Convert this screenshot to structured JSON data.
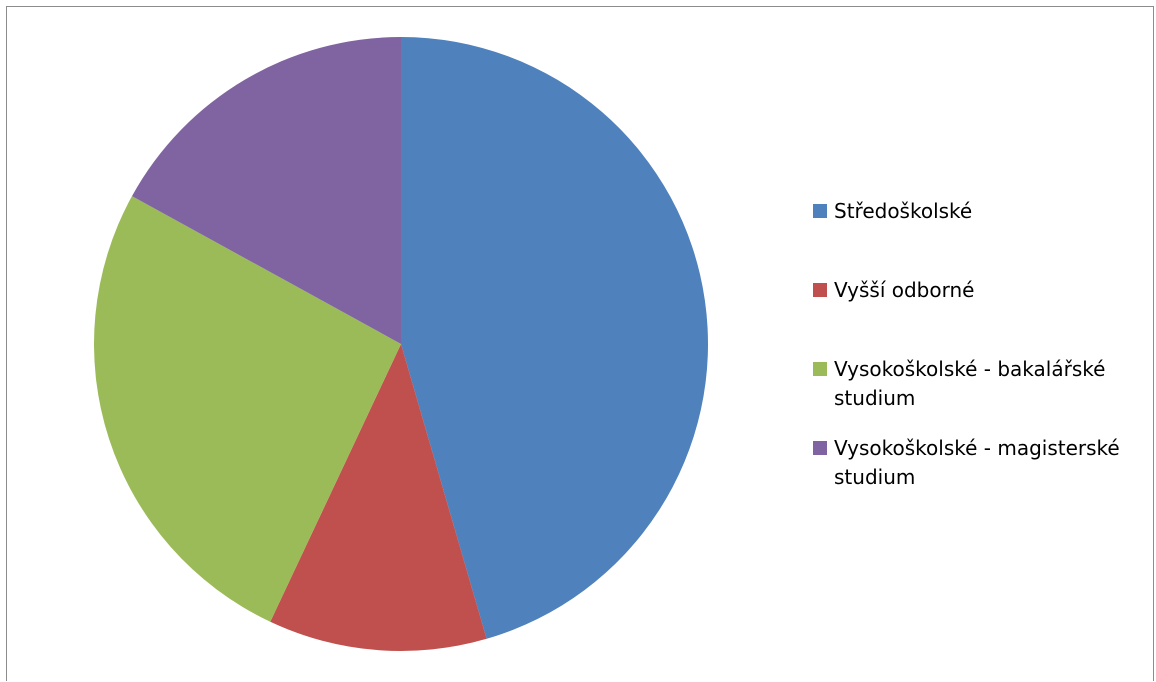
{
  "chart_data": {
    "type": "pie",
    "categories": [
      "Středoškolské",
      "Vyšší odborné",
      "Vysokoškolské - bakalářské studium",
      "Vysokoškolské - magisterské studium"
    ],
    "values": [
      45.5,
      11.5,
      26,
      17
    ],
    "colors": [
      "#4f81bd",
      "#c0504d",
      "#9bbb59",
      "#8064a2"
    ],
    "title": "",
    "legend": "right"
  }
}
